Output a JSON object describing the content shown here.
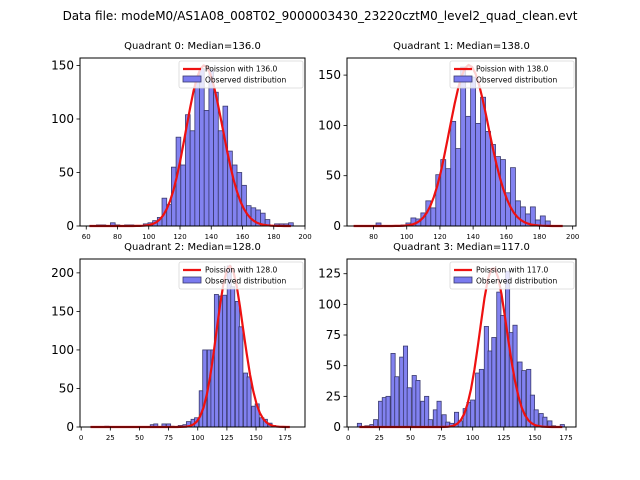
{
  "suptitle": "Data file: modeM0/AS1A08_008T02_9000003430_23220cztM0_level2_quad_clean.evt",
  "colors": {
    "bar_fill": "#7b7bef",
    "bar_edge": "#3a3a6e",
    "poisson_line": "#ee1111"
  },
  "chart_data": [
    {
      "type": "bar",
      "title": "Quadrant 0: Median=136.0",
      "median": 136.0,
      "xlim": [
        56,
        200
      ],
      "ylim": [
        0,
        157
      ],
      "xticks": [
        60,
        80,
        100,
        120,
        140,
        160,
        180,
        200
      ],
      "yticks": [
        0,
        50,
        100,
        150
      ],
      "legend": [
        "Poission with 136.0",
        "Observed distribution"
      ],
      "legend_loc": "upper right",
      "bin_width": 3,
      "bins": [
        [
          62,
          0
        ],
        [
          65,
          0
        ],
        [
          68,
          1
        ],
        [
          71,
          1
        ],
        [
          74,
          0
        ],
        [
          77,
          3
        ],
        [
          80,
          1
        ],
        [
          83,
          0
        ],
        [
          86,
          1
        ],
        [
          89,
          1
        ],
        [
          92,
          0
        ],
        [
          95,
          0
        ],
        [
          98,
          2
        ],
        [
          101,
          3
        ],
        [
          104,
          5
        ],
        [
          107,
          8
        ],
        [
          110,
          26
        ],
        [
          113,
          20
        ],
        [
          116,
          55
        ],
        [
          119,
          83
        ],
        [
          122,
          57
        ],
        [
          125,
          104
        ],
        [
          128,
          89
        ],
        [
          131,
          140
        ],
        [
          134,
          147
        ],
        [
          137,
          108
        ],
        [
          140,
          146
        ],
        [
          143,
          125
        ],
        [
          146,
          89
        ],
        [
          149,
          112
        ],
        [
          152,
          70
        ],
        [
          155,
          57
        ],
        [
          158,
          50
        ],
        [
          161,
          38
        ],
        [
          164,
          19
        ],
        [
          167,
          17
        ],
        [
          170,
          15
        ],
        [
          173,
          12
        ],
        [
          176,
          6
        ],
        [
          179,
          0
        ],
        [
          182,
          2
        ],
        [
          185,
          2
        ],
        [
          188,
          2
        ],
        [
          191,
          3
        ]
      ],
      "poisson_peak": 150
    },
    {
      "type": "bar",
      "title": "Quadrant 1: Median=138.0",
      "median": 138.0,
      "xlim": [
        64,
        202
      ],
      "ylim": [
        0,
        167
      ],
      "xticks": [
        80,
        100,
        120,
        140,
        160,
        180,
        200
      ],
      "yticks": [
        0,
        50,
        100,
        150
      ],
      "legend": [
        "Poission with 138.0",
        "Observed distribution"
      ],
      "legend_loc": "upper right",
      "bin_width": 3,
      "bins": [
        [
          68,
          0
        ],
        [
          71,
          0
        ],
        [
          74,
          0
        ],
        [
          77,
          0
        ],
        [
          80,
          0
        ],
        [
          83,
          3
        ],
        [
          86,
          0
        ],
        [
          89,
          0
        ],
        [
          92,
          0
        ],
        [
          95,
          0
        ],
        [
          98,
          1
        ],
        [
          101,
          3
        ],
        [
          104,
          8
        ],
        [
          107,
          7
        ],
        [
          110,
          13
        ],
        [
          113,
          25
        ],
        [
          116,
          18
        ],
        [
          119,
          51
        ],
        [
          122,
          66
        ],
        [
          125,
          57
        ],
        [
          128,
          104
        ],
        [
          131,
          77
        ],
        [
          134,
          158
        ],
        [
          137,
          109
        ],
        [
          140,
          148
        ],
        [
          143,
          102
        ],
        [
          146,
          128
        ],
        [
          149,
          94
        ],
        [
          152,
          81
        ],
        [
          155,
          69
        ],
        [
          158,
          66
        ],
        [
          161,
          33
        ],
        [
          164,
          58
        ],
        [
          167,
          25
        ],
        [
          170,
          19
        ],
        [
          173,
          12
        ],
        [
          176,
          19
        ],
        [
          179,
          6
        ],
        [
          182,
          10
        ],
        [
          185,
          5
        ],
        [
          188,
          0
        ],
        [
          191,
          0
        ],
        [
          194,
          0
        ]
      ],
      "poisson_peak": 160
    },
    {
      "type": "bar",
      "title": "Quadrant 2: Median=128.0",
      "median": 128.0,
      "xlim": [
        -1,
        192
      ],
      "ylim": [
        0,
        218
      ],
      "xticks": [
        0,
        25,
        50,
        75,
        100,
        125,
        150,
        175
      ],
      "yticks": [
        0,
        50,
        100,
        150,
        200
      ],
      "legend": [
        "Poission with 128.0",
        "Observed distribution"
      ],
      "legend_loc": "upper right",
      "bin_width": 3.5,
      "bins": [
        [
          8,
          0
        ],
        [
          12,
          0
        ],
        [
          15,
          0
        ],
        [
          19,
          0
        ],
        [
          22,
          1
        ],
        [
          26,
          0
        ],
        [
          29,
          0
        ],
        [
          33,
          0
        ],
        [
          36,
          0
        ],
        [
          40,
          0
        ],
        [
          43,
          0
        ],
        [
          47,
          0
        ],
        [
          50,
          0
        ],
        [
          54,
          0
        ],
        [
          57,
          0
        ],
        [
          61,
          3
        ],
        [
          64,
          4
        ],
        [
          68,
          0
        ],
        [
          71,
          4
        ],
        [
          75,
          4
        ],
        [
          78,
          1
        ],
        [
          82,
          0
        ],
        [
          85,
          2
        ],
        [
          89,
          3
        ],
        [
          92,
          7
        ],
        [
          96,
          10
        ],
        [
          99,
          12
        ],
        [
          103,
          47
        ],
        [
          106,
          100
        ],
        [
          110,
          100
        ],
        [
          113,
          100
        ],
        [
          116,
          172
        ],
        [
          120,
          170
        ],
        [
          123,
          171
        ],
        [
          127,
          209
        ],
        [
          130,
          182
        ],
        [
          134,
          163
        ],
        [
          137,
          130
        ],
        [
          141,
          70
        ],
        [
          144,
          65
        ],
        [
          148,
          27
        ],
        [
          151,
          30
        ],
        [
          155,
          12
        ],
        [
          158,
          10
        ],
        [
          162,
          5
        ],
        [
          165,
          2
        ],
        [
          169,
          0
        ],
        [
          172,
          0
        ],
        [
          176,
          0
        ],
        [
          179,
          0
        ]
      ],
      "poisson_peak": 209
    },
    {
      "type": "bar",
      "title": "Quadrant 3: Median=117.0",
      "median": 117.0,
      "xlim": [
        -1,
        183
      ],
      "ylim": [
        0,
        137
      ],
      "xticks": [
        0,
        25,
        50,
        75,
        100,
        125,
        150,
        175
      ],
      "yticks": [
        0,
        25,
        50,
        75,
        100,
        125
      ],
      "legend": [
        "Poission with 117.0",
        "Observed distribution"
      ],
      "legend_loc": "upper right",
      "bin_width": 3.4,
      "bins": [
        [
          9,
          3
        ],
        [
          12,
          0
        ],
        [
          15,
          1
        ],
        [
          19,
          2
        ],
        [
          22,
          6
        ],
        [
          26,
          21
        ],
        [
          29,
          24
        ],
        [
          32,
          25
        ],
        [
          36,
          60
        ],
        [
          39,
          41
        ],
        [
          43,
          57
        ],
        [
          46,
          66
        ],
        [
          49,
          32
        ],
        [
          53,
          42
        ],
        [
          56,
          38
        ],
        [
          60,
          21
        ],
        [
          63,
          25
        ],
        [
          66,
          6
        ],
        [
          70,
          14
        ],
        [
          73,
          21
        ],
        [
          77,
          10
        ],
        [
          80,
          4
        ],
        [
          83,
          3
        ],
        [
          87,
          12
        ],
        [
          90,
          5
        ],
        [
          94,
          15
        ],
        [
          97,
          20
        ],
        [
          100,
          22
        ],
        [
          104,
          44
        ],
        [
          107,
          47
        ],
        [
          111,
          82
        ],
        [
          114,
          62
        ],
        [
          117,
          73
        ],
        [
          121,
          110
        ],
        [
          124,
          91
        ],
        [
          128,
          127
        ],
        [
          131,
          77
        ],
        [
          134,
          83
        ],
        [
          138,
          53
        ],
        [
          141,
          46
        ],
        [
          145,
          47
        ],
        [
          148,
          26
        ],
        [
          151,
          14
        ],
        [
          155,
          11
        ],
        [
          158,
          8
        ],
        [
          162,
          5
        ],
        [
          165,
          1
        ],
        [
          168,
          0
        ],
        [
          172,
          2
        ]
      ],
      "poisson_peak": 130
    }
  ]
}
